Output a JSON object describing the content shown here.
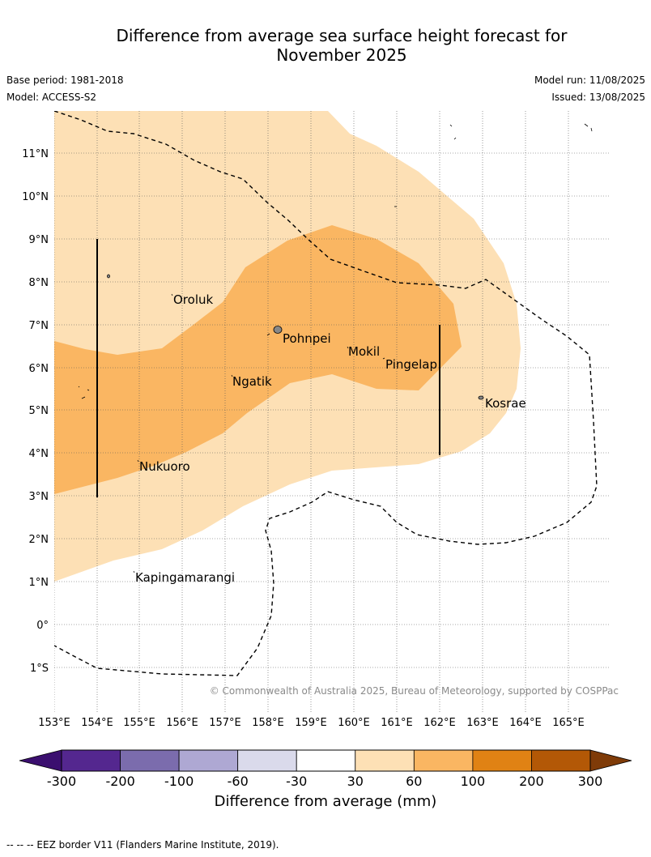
{
  "title_line1": "Difference from average sea surface height forecast for",
  "title_line2": "November 2025",
  "base_period": "Base period: 1981-2018",
  "model": "Model: ACCESS-S2",
  "model_run": "Model run: 11/08/2025",
  "issued": "Issued: 13/08/2025",
  "copyright": "© Commonwealth of Australia 2025, Bureau of Meteorology, supported by COSPPac",
  "footnote": "-- -- -- EEZ border V11 (Flanders Marine Institute, 2019).",
  "map": {
    "lon_ticks": [
      "153°E",
      "154°E",
      "155°E",
      "156°E",
      "157°E",
      "158°E",
      "159°E",
      "160°E",
      "161°E",
      "162°E",
      "163°E",
      "164°E",
      "165°E"
    ],
    "lat_ticks": [
      "11°N",
      "10°N",
      "9°N",
      "8°N",
      "7°N",
      "6°N",
      "5°N",
      "4°N",
      "3°N",
      "2°N",
      "1°N",
      "0°",
      "1°S"
    ],
    "places": [
      "Oroluk",
      "Pohnpei",
      "Mokil",
      "Pingelap",
      "Ngatik",
      "Kosrae",
      "Nukuoro",
      "Kapingamarangi"
    ]
  },
  "colorbar": {
    "title": "Difference from average (mm)",
    "tick_labels": [
      "-300",
      "-200",
      "-100",
      "-60",
      "-30",
      "30",
      "60",
      "100",
      "200",
      "300"
    ],
    "colors": [
      "#3b0f6f",
      "#54278f",
      "#7b6cad",
      "#aea8d3",
      "#dadaeb",
      "#ffffff",
      "#fde0b5",
      "#fab662",
      "#e08214",
      "#b35806",
      "#7f3b08"
    ]
  }
}
